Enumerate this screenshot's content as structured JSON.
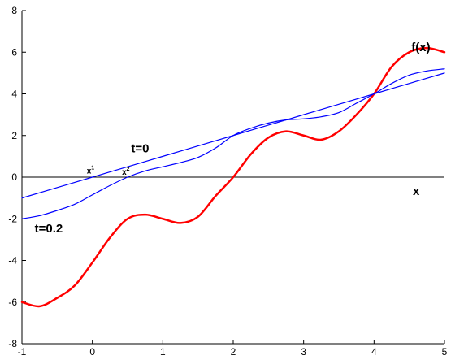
{
  "chart_data": {
    "type": "line",
    "title": "",
    "xlabel": "",
    "ylabel": "",
    "xlim": [
      -1,
      5
    ],
    "ylim": [
      -8,
      8
    ],
    "x_ticks": [
      "-1",
      "0",
      "1",
      "2",
      "3",
      "4",
      "5"
    ],
    "y_ticks": [
      "-8",
      "-6",
      "-4",
      "-2",
      "0",
      "2",
      "4",
      "6",
      "8"
    ],
    "grid": false,
    "legend": "none",
    "series": [
      {
        "color": "#ff0000",
        "x": [
          -1.0,
          -0.75,
          -0.5,
          -0.25,
          0.0,
          0.25,
          0.5,
          0.75,
          1.0,
          1.25,
          1.5,
          1.75,
          2.0,
          2.25,
          2.5,
          2.75,
          3.0,
          3.25,
          3.5,
          3.75,
          4.0,
          4.25,
          4.5,
          4.75,
          5.0
        ],
        "y": [
          -6.0,
          -6.2,
          -5.8,
          -5.2,
          -4.1,
          -2.9,
          -2.0,
          -1.8,
          -2.0,
          -2.2,
          -1.9,
          -0.9,
          0.0,
          1.1,
          1.9,
          2.2,
          2.0,
          1.8,
          2.2,
          3.0,
          4.0,
          5.3,
          6.0,
          6.2,
          6.0
        ]
      },
      {
        "color": "#0000ff",
        "x": [
          -1.0,
          -0.5,
          0.0,
          0.5,
          1.0,
          1.5,
          2.0,
          2.5,
          3.0,
          3.5,
          4.0,
          4.5,
          5.0
        ],
        "y": [
          -1.0,
          -0.5,
          0.0,
          0.5,
          1.0,
          1.5,
          2.0,
          2.5,
          3.0,
          3.5,
          4.0,
          4.5,
          5.0
        ]
      },
      {
        "color": "#0000ff",
        "x": [
          -1.0,
          -0.75,
          -0.5,
          -0.25,
          0.0,
          0.25,
          0.5,
          0.75,
          1.0,
          1.25,
          1.5,
          1.75,
          2.0,
          2.25,
          2.5,
          2.75,
          3.0,
          3.25,
          3.5,
          3.75,
          4.0,
          4.25,
          4.5,
          4.75,
          5.0
        ],
        "y": [
          -2.0,
          -1.85,
          -1.6,
          -1.3,
          -0.85,
          -0.4,
          0.0,
          0.3,
          0.5,
          0.7,
          0.95,
          1.4,
          2.0,
          2.35,
          2.6,
          2.75,
          2.8,
          2.9,
          3.1,
          3.55,
          4.0,
          4.5,
          4.9,
          5.1,
          5.2
        ]
      }
    ],
    "annotations": [
      {
        "text": "f(x)",
        "x": 4.53,
        "y": 6.05
      },
      {
        "text": "t=0",
        "x": 0.55,
        "y": 1.2
      },
      {
        "text": "t=0.2",
        "x": -0.82,
        "y": -2.65
      },
      {
        "text": "x",
        "x": 4.55,
        "y": -0.85
      },
      {
        "text": "x",
        "sup": "1",
        "x": -0.08,
        "y": 0.18
      },
      {
        "text": "x",
        "sup": "2",
        "x": 0.42,
        "y": 0.12
      }
    ]
  }
}
